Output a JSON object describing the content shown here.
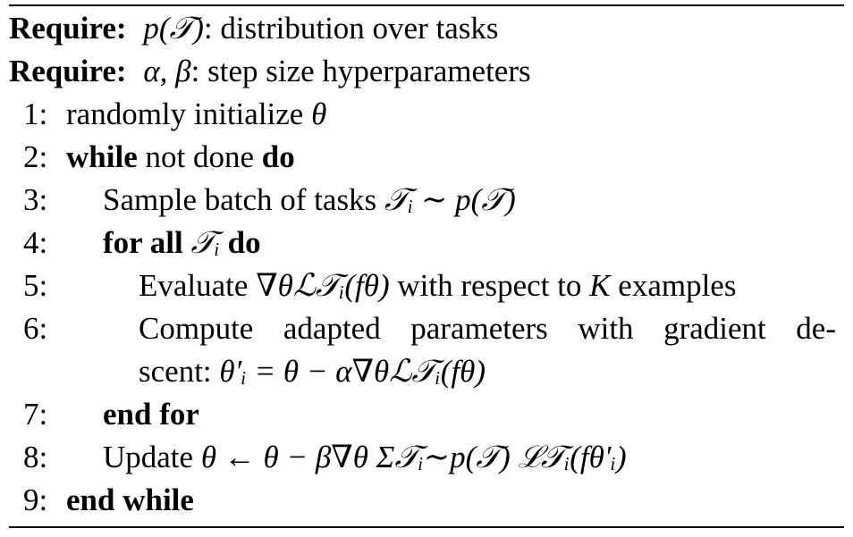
{
  "algorithm": {
    "require_label": "Require:",
    "requires": [
      {
        "math": "p(𝒯)",
        "text": ": distribution over tasks"
      },
      {
        "math": "α, β",
        "text": ": step size hyperparameters"
      }
    ],
    "lines": [
      {
        "num": "1:",
        "pre": "randomly initialize ",
        "math": "θ"
      },
      {
        "num": "2:",
        "kw1": "while",
        "mid": " not done ",
        "kw2": "do"
      },
      {
        "num": "3:",
        "pre": "Sample batch of tasks ",
        "math": "𝒯ᵢ ∼ p(𝒯)"
      },
      {
        "num": "4:",
        "kw1": "for all",
        "math": "𝒯ᵢ",
        "kw2": "do"
      },
      {
        "num": "5:",
        "pre": "Evaluate ",
        "math": "∇θℒ𝒯ᵢ(fθ)",
        "post": " with respect to ",
        "math2": "K",
        "post2": " examples"
      },
      {
        "num": "6:",
        "pre": "Compute adapted parameters with gradient de-"
      },
      {
        "num": "",
        "pre": "scent: ",
        "math": "θ′ᵢ = θ − α∇θℒ𝒯ᵢ(fθ)"
      },
      {
        "num": "7:",
        "kw1": "end for"
      },
      {
        "num": "8:",
        "pre": "Update ",
        "math": "θ ← θ − β∇θ Σ𝒯ᵢ∼p(𝒯) ℒ𝒯ᵢ(fθ′ᵢ)"
      },
      {
        "num": "9:",
        "kw1": "end while"
      }
    ]
  }
}
